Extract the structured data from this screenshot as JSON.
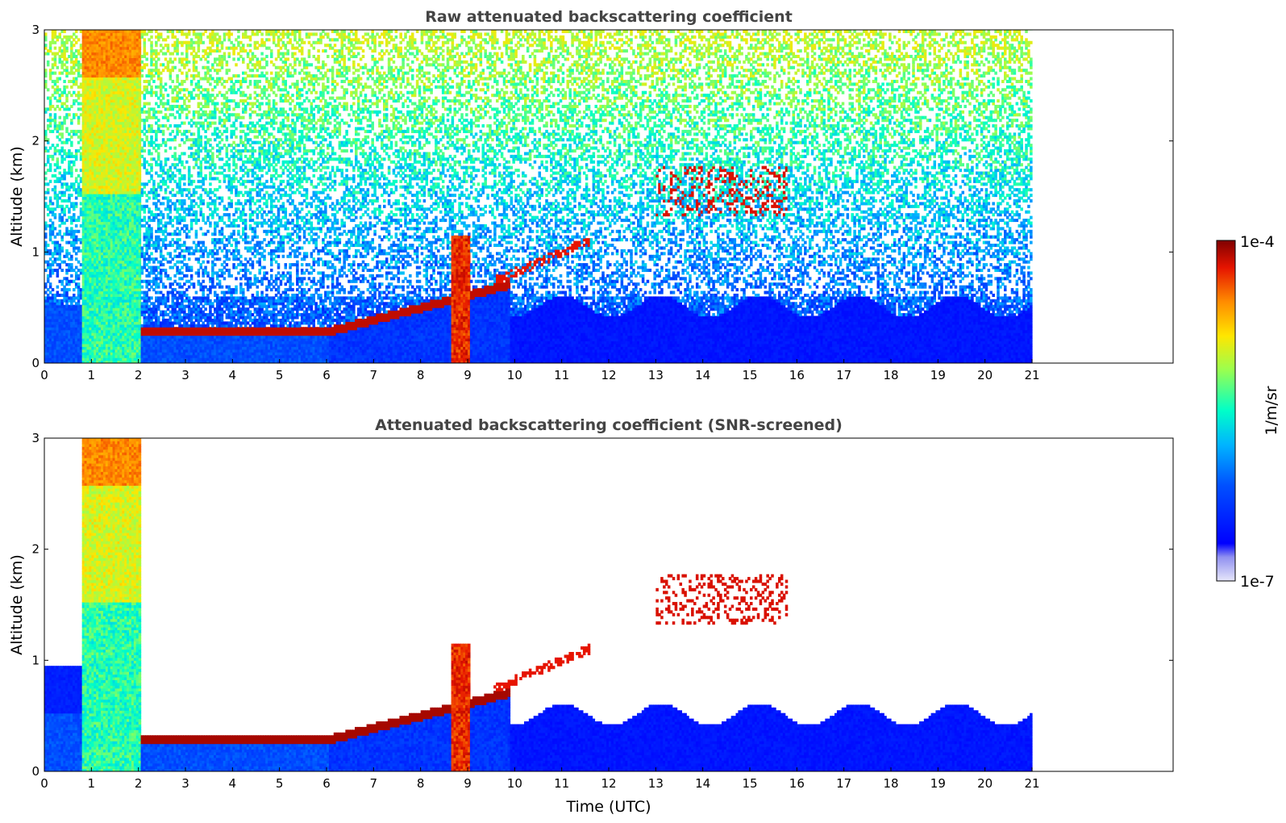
{
  "chart_data": [
    {
      "type": "heatmap",
      "title": "Raw attenuated backscattering coefficient",
      "xlabel": "",
      "ylabel": "Altitude (km)",
      "xlim": [
        0,
        24
      ],
      "ylim": [
        0,
        3
      ],
      "x_ticks": [
        0,
        1,
        2,
        3,
        4,
        5,
        6,
        7,
        8,
        9,
        10,
        11,
        12,
        13,
        14,
        15,
        16,
        17,
        18,
        19,
        20,
        21
      ],
      "y_ticks": [
        0,
        1,
        2,
        3
      ],
      "data_end_time": 21,
      "features": [
        {
          "name": "precipitation/fog column",
          "time": [
            0.8,
            2.05
          ],
          "altitude": [
            0,
            3
          ]
        },
        {
          "name": "boundary layer top",
          "time": [
            1.3,
            9.9
          ],
          "altitude_start": 0.27,
          "altitude_end": 0.7
        },
        {
          "name": "cloud layer",
          "time": [
            8.6,
            9.0
          ],
          "altitude": [
            0,
            1.2
          ]
        },
        {
          "name": "elevated aerosol layer",
          "time": [
            9.5,
            11.6
          ],
          "altitude_start": 0.75,
          "altitude_end": 1.1
        },
        {
          "name": "mid-level clouds",
          "time": [
            13.0,
            15.8
          ],
          "altitude": [
            1.3,
            1.8
          ]
        }
      ]
    },
    {
      "type": "heatmap",
      "title": "Attenuated backscattering coefficient (SNR-screened)",
      "xlabel": "Time (UTC)",
      "ylabel": "Altitude (km)",
      "xlim": [
        0,
        24
      ],
      "ylim": [
        0,
        3
      ],
      "x_ticks": [
        0,
        1,
        2,
        3,
        4,
        5,
        6,
        7,
        8,
        9,
        10,
        11,
        12,
        13,
        14,
        15,
        16,
        17,
        18,
        19,
        20,
        21
      ],
      "y_ticks": [
        0,
        1,
        2,
        3
      ],
      "data_end_time": 21
    }
  ],
  "colorbar": {
    "label": "1/m/sr",
    "max_label": "1e-4",
    "min_label": "1e-7",
    "scale": "log",
    "colors": [
      "#e6e6fa",
      "#0000ff",
      "#00b4ff",
      "#00ffc8",
      "#9aff4f",
      "#ffe600",
      "#ff8c00",
      "#e61400",
      "#800000"
    ]
  }
}
